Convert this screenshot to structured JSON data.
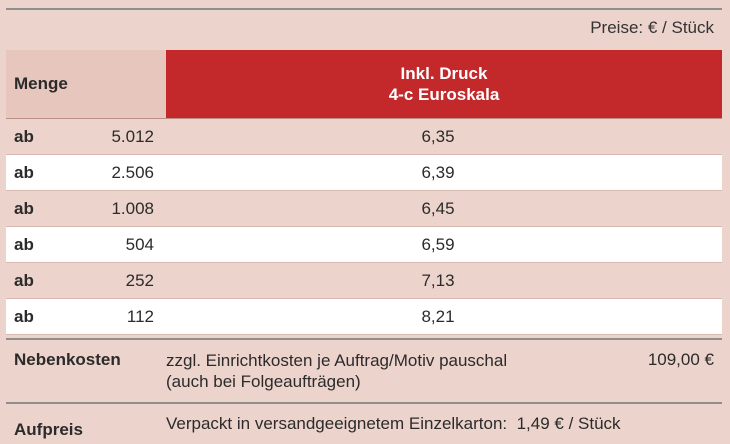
{
  "prices_note": "Preise: € / Stück",
  "header": {
    "menge": "Menge",
    "druck_line1": "Inkl. Druck",
    "druck_line2": "4-c Euroskala"
  },
  "rows": [
    {
      "prefix": "ab",
      "qty": "5.012",
      "price": "6,35"
    },
    {
      "prefix": "ab",
      "qty": "2.506",
      "price": "6,39"
    },
    {
      "prefix": "ab",
      "qty": "1.008",
      "price": "6,45"
    },
    {
      "prefix": "ab",
      "qty": "504",
      "price": "6,59"
    },
    {
      "prefix": "ab",
      "qty": "252",
      "price": "7,13"
    },
    {
      "prefix": "ab",
      "qty": "112",
      "price": "8,21"
    }
  ],
  "nebenkosten": {
    "label": "Nebenkosten",
    "line1": "zzgl. Einrichtkosten je Auftrag/Motiv pauschal",
    "line2": "(auch bei Folgeaufträgen)",
    "price": "109,00 €"
  },
  "aufpreis": {
    "label": "Aufpreis",
    "text": "Verpackt in versandgeeignetem Einzelkarton:  1,49 € / Stück"
  }
}
